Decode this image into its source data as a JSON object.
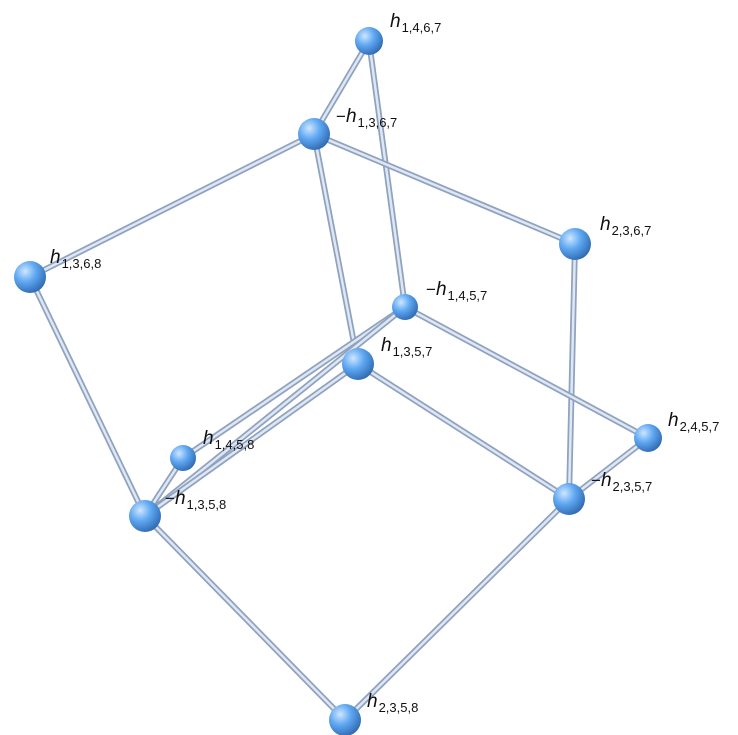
{
  "graph": {
    "colors": {
      "edge": "#aebdd6",
      "edge_highlight": "#dfe7f3",
      "node_fill_center": "#b9dcff",
      "node_fill_mid": "#5aa6f0",
      "node_fill_edge": "#2f6fb8",
      "label_text": "#111111"
    },
    "nodes": [
      {
        "id": "h1467",
        "sign": "",
        "symbol": "h",
        "indices": "1,4,6,7"
      },
      {
        "id": "mh1367",
        "sign": "−",
        "symbol": "h",
        "indices": "1,3,6,7"
      },
      {
        "id": "h1368",
        "sign": "",
        "symbol": "h",
        "indices": "1,3,6,8"
      },
      {
        "id": "h2367",
        "sign": "",
        "symbol": "h",
        "indices": "2,3,6,7"
      },
      {
        "id": "mh1457",
        "sign": "−",
        "symbol": "h",
        "indices": "1,4,5,7"
      },
      {
        "id": "h1357",
        "sign": "",
        "symbol": "h",
        "indices": "1,3,5,7"
      },
      {
        "id": "h2457",
        "sign": "",
        "symbol": "h",
        "indices": "2,4,5,7"
      },
      {
        "id": "h1458",
        "sign": "",
        "symbol": "h",
        "indices": "1,4,5,8"
      },
      {
        "id": "mh1358",
        "sign": "−",
        "symbol": "h",
        "indices": "1,3,5,8"
      },
      {
        "id": "mh2357",
        "sign": "−",
        "symbol": "h",
        "indices": "2,3,5,7"
      },
      {
        "id": "h2358",
        "sign": "",
        "symbol": "h",
        "indices": "2,3,5,8"
      }
    ],
    "edges": [
      [
        "h1467",
        "mh1367"
      ],
      [
        "h1467",
        "mh1457"
      ],
      [
        "mh1367",
        "h1368"
      ],
      [
        "mh1367",
        "h2367"
      ],
      [
        "mh1367",
        "h1357"
      ],
      [
        "h1368",
        "mh1358"
      ],
      [
        "h2367",
        "mh2357"
      ],
      [
        "mh1457",
        "h2457"
      ],
      [
        "mh1457",
        "h1458"
      ],
      [
        "mh1457",
        "mh1358"
      ],
      [
        "h1357",
        "mh1358"
      ],
      [
        "h1357",
        "mh2357"
      ],
      [
        "h2457",
        "mh2357"
      ],
      [
        "h1458",
        "mh1358"
      ],
      [
        "mh1358",
        "h2358"
      ],
      [
        "mh2357",
        "h2358"
      ]
    ]
  }
}
